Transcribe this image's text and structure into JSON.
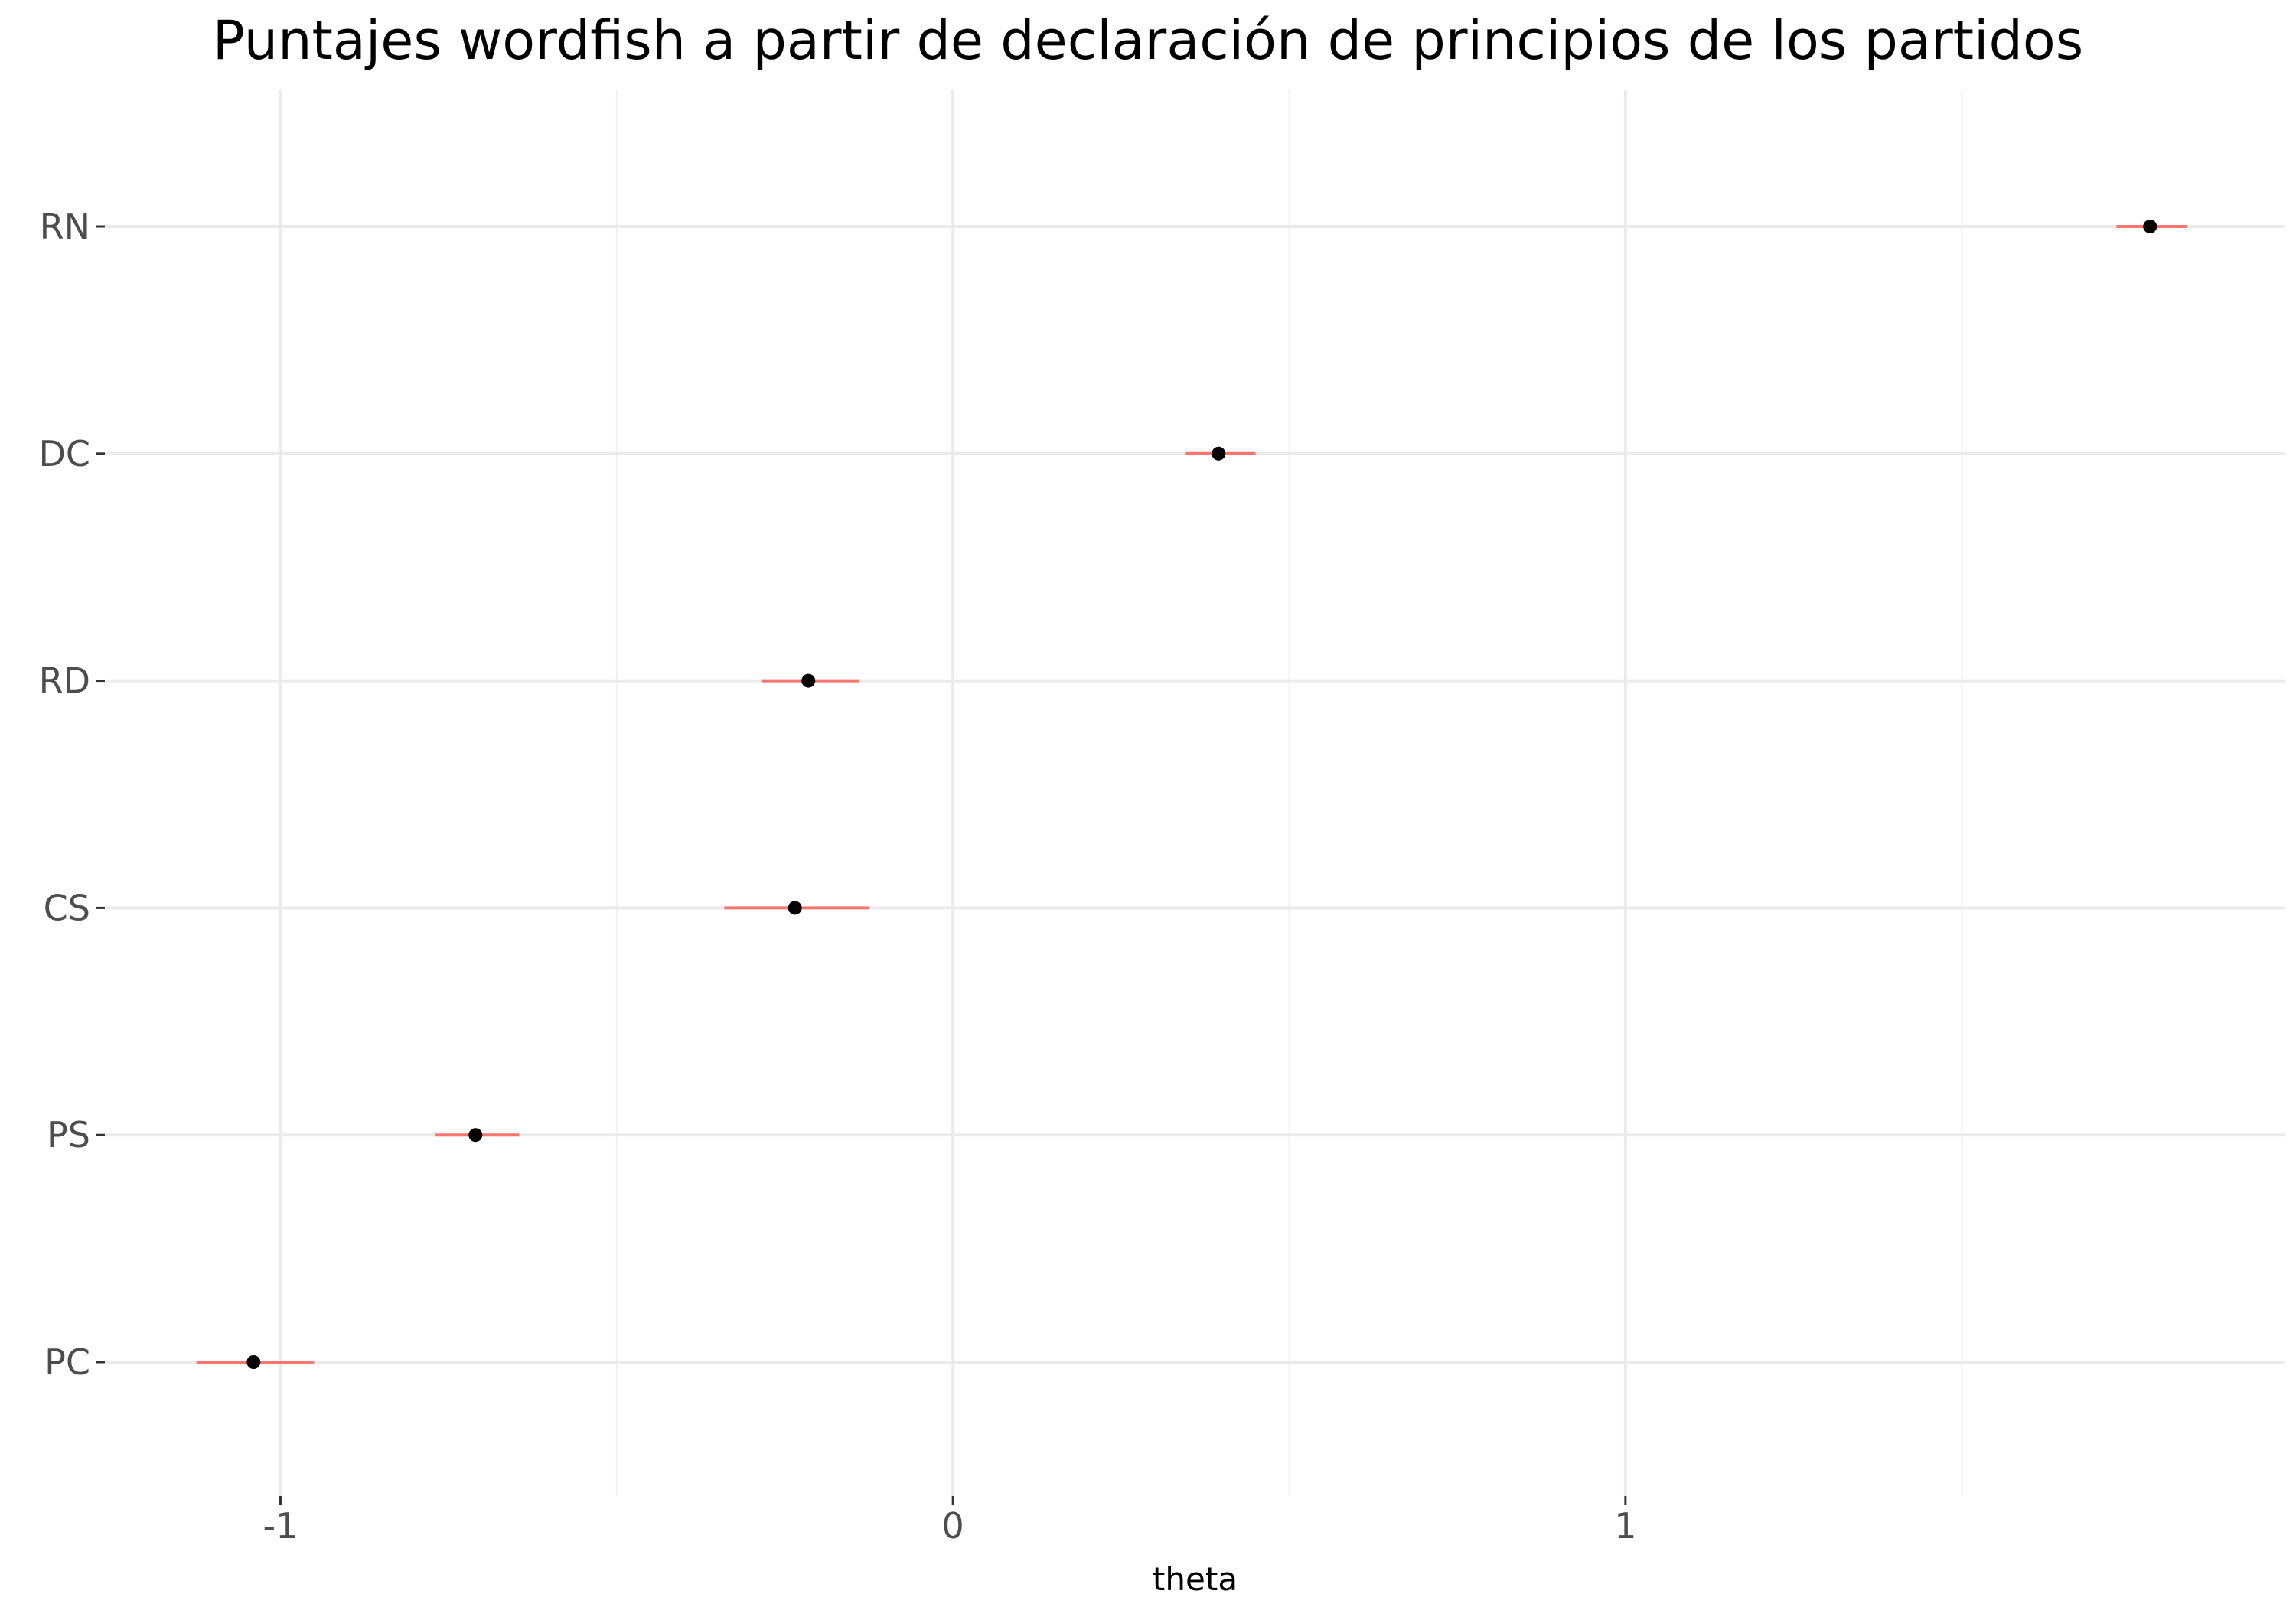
{
  "chart_data": {
    "type": "scatter",
    "title": "Puntajes wordfish a partir de declaración de principios de los partidos",
    "xlabel": "theta",
    "ylabel": "",
    "xlim": [
      -1.26,
      1.98
    ],
    "x_ticks": [
      -1,
      0,
      1
    ],
    "x_tick_labels": [
      "-1",
      "0",
      "1"
    ],
    "categories": [
      "PC",
      "PS",
      "CS",
      "RD",
      "DC",
      "RN"
    ],
    "points": [
      {
        "label": "PC",
        "theta": -1.04,
        "lower": -1.125,
        "upper": -0.95
      },
      {
        "label": "PS",
        "theta": -0.71,
        "lower": -0.77,
        "upper": -0.645
      },
      {
        "label": "CS",
        "theta": -0.235,
        "lower": -0.34,
        "upper": -0.125
      },
      {
        "label": "RD",
        "theta": -0.215,
        "lower": -0.285,
        "upper": -0.14
      },
      {
        "label": "DC",
        "theta": 0.395,
        "lower": 0.345,
        "upper": 0.45
      },
      {
        "label": "RN",
        "theta": 1.78,
        "lower": 1.73,
        "upper": 1.835
      }
    ],
    "grid": true,
    "legend": "none"
  },
  "colors": {
    "point": "#000000",
    "interval": "#f8766d",
    "grid_major": "#ebebeb",
    "grid_minor": "#f2f2f2",
    "tick_mark": "#333333"
  }
}
